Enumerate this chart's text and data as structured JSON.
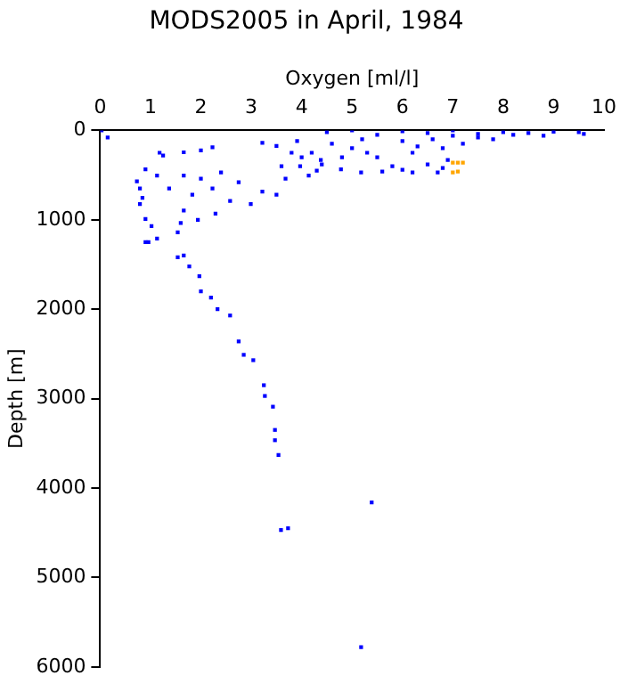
{
  "chart_data": {
    "type": "scatter",
    "title": "MODS2005 in April, 1984",
    "xlabel": "Oxygen [ml/l]",
    "ylabel": "Depth [m]",
    "xlim": [
      0,
      10
    ],
    "xticks": [
      0,
      1,
      2,
      3,
      4,
      5,
      6,
      7,
      8,
      9,
      10
    ],
    "ylim": [
      6000,
      0
    ],
    "yticks": [
      0,
      1000,
      2000,
      3000,
      4000,
      5000,
      6000
    ],
    "grid": false,
    "legend": false,
    "marker": "square",
    "series": [
      {
        "color": "#0000ff",
        "x": [
          0.03,
          0.15,
          1.25,
          1.66,
          2.0,
          2.23,
          3.22,
          3.5,
          3.91,
          0.9,
          1.13,
          1.37,
          1.66,
          1.83,
          2.0,
          2.23,
          2.4,
          2.58,
          2.75,
          2.99,
          3.22,
          3.5,
          3.68,
          3.97,
          4.14,
          4.38,
          4.78,
          5.18,
          1.02,
          1.13,
          1.54,
          1.6,
          1.66,
          1.94,
          2.29,
          1.54,
          0.79,
          0.84,
          0.73,
          0.79,
          0.9,
          0.96,
          1.18,
          0.9,
          1.66,
          1.77,
          1.97,
          2.0,
          2.2,
          2.33,
          2.58,
          2.75,
          2.85,
          3.04,
          3.25,
          3.27,
          3.43,
          3.47,
          3.47,
          3.54,
          3.59,
          3.73,
          5.39,
          5.18,
          4.5,
          5.0,
          5.5,
          6.0,
          6.5,
          7.0,
          7.5,
          8.0,
          8.5,
          9.0,
          9.5,
          9.6,
          8.8,
          7.8,
          7.2,
          6.8,
          6.2,
          5.5,
          5.0,
          4.6,
          4.2,
          5.2,
          6.0,
          6.6,
          7.5,
          5.8,
          6.5,
          6.8,
          6.7,
          6.2,
          5.6,
          6.0,
          6.9,
          4.4,
          4.8,
          5.3,
          6.3,
          7.0,
          8.2,
          4.0,
          3.8,
          4.3,
          3.6
        ],
        "values": [
          0,
          80,
          280,
          245,
          225,
          190,
          140,
          175,
          120,
          435,
          505,
          650,
          505,
          720,
          540,
          650,
          470,
          790,
          580,
          825,
          685,
          720,
          540,
          400,
          505,
          330,
          435,
          470,
          1070,
          1210,
          1140,
          1035,
          895,
          1000,
          930,
          1420,
          650,
          755,
          570,
          825,
          990,
          1250,
          250,
          1250,
          1400,
          1520,
          1630,
          1800,
          1870,
          2000,
          2070,
          2360,
          2510,
          2570,
          2850,
          2970,
          3090,
          3350,
          3465,
          3630,
          4470,
          4450,
          4160,
          5780,
          20,
          0,
          50,
          10,
          30,
          0,
          40,
          20,
          30,
          15,
          20,
          40,
          60,
          100,
          150,
          200,
          250,
          300,
          200,
          150,
          250,
          100,
          120,
          100,
          80,
          400,
          380,
          420,
          470,
          470,
          460,
          440,
          330,
          380,
          300,
          250,
          180,
          60,
          50,
          300,
          250,
          450,
          400
        ]
      },
      {
        "color": "#ffa500",
        "x": [
          7.0,
          7.1,
          7.2,
          7.0,
          7.1
        ],
        "values": [
          360,
          360,
          360,
          470,
          460
        ]
      }
    ]
  }
}
